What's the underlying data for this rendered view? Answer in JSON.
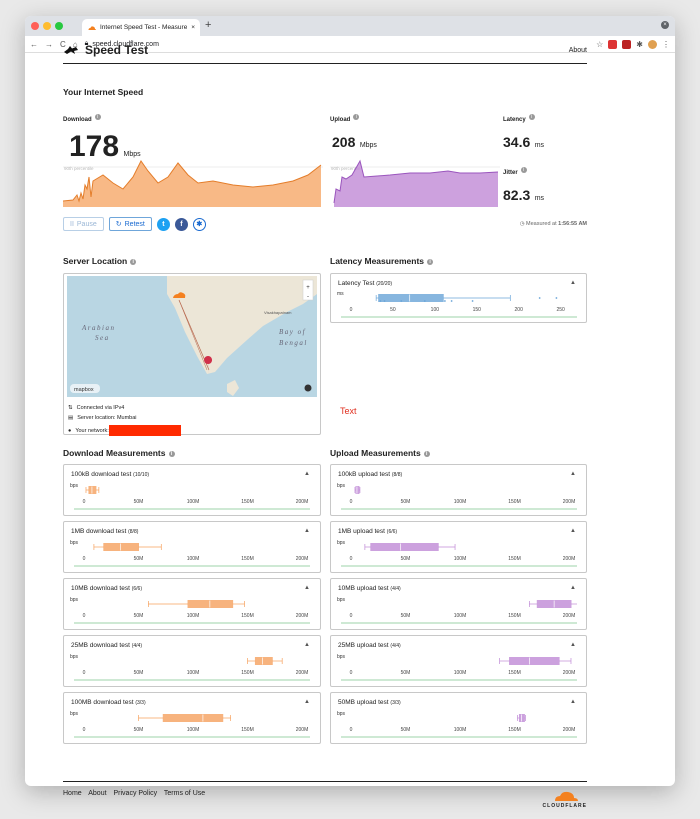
{
  "browser": {
    "tab_title": "Internet Speed Test - Measure",
    "url": "speed.cloudflare.com"
  },
  "header": {
    "brand": "Speed Test",
    "about": "About"
  },
  "speed": {
    "title": "Your Internet Speed",
    "download_label": "Download",
    "download_value": "178",
    "download_unit": "Mbps",
    "upload_label": "Upload",
    "upload_value": "208",
    "upload_unit": "Mbps",
    "latency_label": "Latency",
    "latency_value": "34.6",
    "latency_unit": "ms",
    "jitter_label": "Jitter",
    "jitter_value": "82.3",
    "jitter_unit": "ms",
    "percentile_label": "90th percentile",
    "pause": "Pause",
    "retest": "Retest",
    "measured_prefix": "Measured at",
    "measured_time": "1:56:55 AM"
  },
  "server": {
    "title": "Server Location",
    "sea_1": "Arabian",
    "sea_2": "Sea",
    "bay_1": "Bay of",
    "bay_2": "Bengal",
    "city": "Visakhapatnam",
    "mapbox": "mapbox",
    "connected": "Connected via IPv4",
    "location": "Server location: Mumbai",
    "network": "Your network:",
    "overlay_text": "Text"
  },
  "latency": {
    "title": "Latency Measurements",
    "test_title": "Latency Test",
    "test_count": "(20/20)",
    "unit": "ms",
    "ticks": [
      "0",
      "50",
      "100",
      "150",
      "200",
      "250"
    ],
    "box": {
      "min": 30,
      "q1": 33,
      "median": 70,
      "q3": 110,
      "max": 190,
      "outliers": [
        225,
        245
      ],
      "points": [
        35,
        40,
        60,
        88,
        112,
        120,
        145
      ]
    },
    "domain": [
      0,
      260
    ]
  },
  "download": {
    "title": "Download Measurements",
    "ticks": [
      "0",
      "50M",
      "100M",
      "150M",
      "200M"
    ],
    "unit": "bps",
    "tests": [
      {
        "name": "100kB download test",
        "count": "(10/10)",
        "min": 2,
        "q1": 5,
        "median": 8,
        "q3": 12,
        "max": 15
      },
      {
        "name": "1MB download test",
        "count": "(8/8)",
        "min": 10,
        "q1": 20,
        "median": 37,
        "q3": 55,
        "max": 78
      },
      {
        "name": "10MB download test",
        "count": "(6/6)",
        "min": 65,
        "q1": 105,
        "median": 127,
        "q3": 150,
        "max": 162
      },
      {
        "name": "25MB download test",
        "count": "(4/4)",
        "min": 165,
        "q1": 173,
        "median": 180,
        "q3": 190,
        "max": 200
      },
      {
        "name": "100MB download test",
        "count": "(3/3)",
        "min": 55,
        "q1": 80,
        "median": 120,
        "q3": 140,
        "max": 148
      }
    ]
  },
  "upload": {
    "title": "Upload Measurements",
    "ticks": [
      "0",
      "50M",
      "100M",
      "150M",
      "200M"
    ],
    "unit": "bps",
    "tests": [
      {
        "name": "100kB upload test",
        "count": "(8/8)",
        "min": 4,
        "q1": 5,
        "median": 6,
        "q3": 8,
        "max": 9
      },
      {
        "name": "1MB upload test",
        "count": "(6/6)",
        "min": 14,
        "q1": 20,
        "median": 50,
        "q3": 88,
        "max": 105
      },
      {
        "name": "10MB upload test",
        "count": "(4/4)",
        "min": 180,
        "q1": 188,
        "median": 205,
        "q3": 222,
        "max": 230
      },
      {
        "name": "25MB upload test",
        "count": "(4/4)",
        "min": 150,
        "q1": 160,
        "median": 180,
        "q3": 210,
        "max": 222
      },
      {
        "name": "50MB upload test",
        "count": "(3/3)",
        "min": 168,
        "q1": 170,
        "median": 172,
        "q3": 175,
        "max": 176
      }
    ]
  },
  "colors": {
    "download": "#f6a15e",
    "upload": "#c08ad6",
    "latency": "#6aa5d8",
    "accent": "#1a6ad0",
    "redact": "#ff2a00"
  },
  "footer": {
    "home": "Home",
    "about": "About",
    "privacy": "Privacy Policy",
    "terms": "Terms of Use",
    "logo": "CLOUDFLARE"
  }
}
